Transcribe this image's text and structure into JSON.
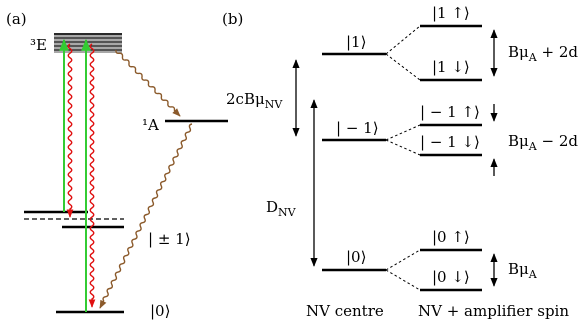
{
  "panel_a": {
    "label": "(a)",
    "state_3E": "³E",
    "state_1A": "¹A",
    "state_pm1": "| ± 1⟩",
    "state_0": "|0⟩"
  },
  "panel_b": {
    "label": "(b)",
    "nv": {
      "state_1": "|1⟩",
      "state_m1": "| − 1⟩",
      "state_0": "|0⟩",
      "gap_upper": "2cBμ",
      "gap_upper_sub": "NV",
      "gap_lower": "D",
      "gap_lower_sub": "NV",
      "caption": "NV centre"
    },
    "amp": {
      "s1_up": "|1 ↑⟩",
      "s1_down": "|1 ↓⟩",
      "sm1_up": "| − 1 ↑⟩",
      "sm1_down": "| − 1 ↓⟩",
      "s0_up": "|0 ↑⟩",
      "s0_down": "|0 ↓⟩",
      "split_1": "Bμ",
      "split_1_sub": "A",
      "split_1_tail": " + 2d",
      "split_m1": "Bμ",
      "split_m1_sub": "A",
      "split_m1_tail": " − 2d",
      "split_0": "Bμ",
      "split_0_sub": "A",
      "caption": "NV + amplifier spin"
    }
  },
  "colors": {
    "excitation": "#33cc33",
    "fluorescence": "#e01010",
    "nonradiative": "#8b5a2b"
  }
}
